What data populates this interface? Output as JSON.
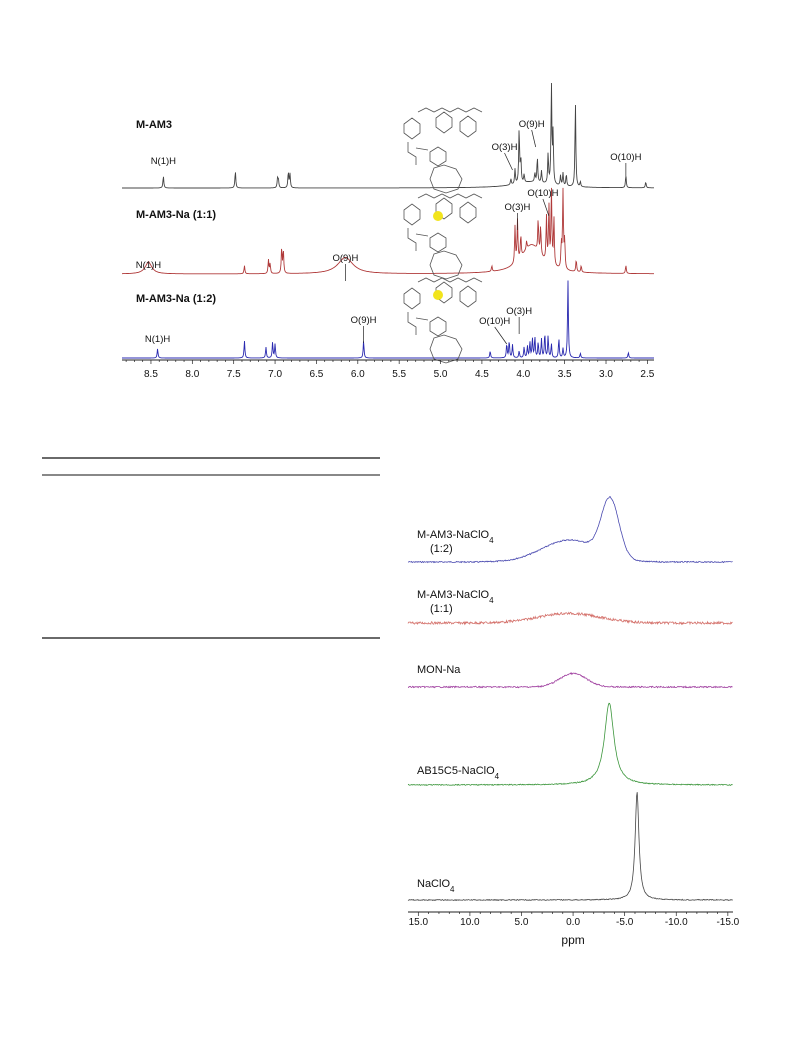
{
  "chart_data": [
    {
      "type": "line",
      "xlim": [
        8.85,
        2.42
      ],
      "x_ticks": [
        "8.5",
        "8.0",
        "7.5",
        "7.0",
        "6.5",
        "6.0",
        "5.5",
        "5.0",
        "4.5",
        "4.0",
        "3.5",
        "3.0",
        "2.5"
      ],
      "x_tick_values": [
        8.5,
        8.0,
        7.5,
        7.0,
        6.5,
        6.0,
        5.5,
        5.0,
        4.5,
        4.0,
        3.5,
        3.0,
        2.5
      ],
      "series": [
        {
          "name": "M-AM3",
          "color": "#444444",
          "peaks": [
            [
              8.35,
              0.12
            ],
            [
              7.48,
              0.17
            ],
            [
              6.97,
              0.09
            ],
            [
              6.96,
              0.08
            ],
            [
              6.84,
              0.16
            ],
            [
              6.82,
              0.14
            ],
            [
              4.15,
              0.06
            ],
            [
              4.1,
              0.15
            ],
            [
              4.05,
              0.55
            ],
            [
              4.03,
              0.25
            ],
            [
              3.99,
              0.08
            ],
            [
              3.86,
              0.09
            ],
            [
              3.83,
              0.25
            ],
            [
              3.78,
              0.12
            ],
            [
              3.7,
              0.3
            ],
            [
              3.66,
              1.0
            ],
            [
              3.64,
              0.5
            ],
            [
              3.55,
              0.1
            ],
            [
              3.52,
              0.13
            ],
            [
              3.48,
              0.12
            ],
            [
              3.37,
              0.85
            ],
            [
              3.31,
              0.05
            ],
            [
              2.76,
              0.12
            ],
            [
              2.52,
              0.06
            ]
          ],
          "broad": [
            [
              3.9,
              0.06,
              0.25
            ]
          ],
          "labels": [
            {
              "text": "N(1)H",
              "x": 8.35
            },
            {
              "text": "O(3)H",
              "x": 4.13
            },
            {
              "text": "O(9)H",
              "x": 3.85
            },
            {
              "text": "O(10)H",
              "x": 2.76
            }
          ]
        },
        {
          "name": "M-AM3-Na (1:1)",
          "color": "#b03a3a",
          "peaks": [
            [
              8.53,
              0.01
            ],
            [
              7.37,
              0.1
            ],
            [
              7.08,
              0.17
            ],
            [
              7.06,
              0.12
            ],
            [
              6.92,
              0.32
            ],
            [
              6.9,
              0.28
            ],
            [
              4.38,
              0.07
            ],
            [
              4.1,
              0.45
            ],
            [
              4.07,
              0.5
            ],
            [
              4.03,
              0.28
            ],
            [
              3.96,
              0.1
            ],
            [
              3.82,
              0.4
            ],
            [
              3.79,
              0.35
            ],
            [
              3.72,
              0.55
            ],
            [
              3.69,
              0.7
            ],
            [
              3.66,
              0.95
            ],
            [
              3.63,
              0.6
            ],
            [
              3.54,
              0.3
            ],
            [
              3.52,
              1.0
            ],
            [
              3.5,
              0.35
            ],
            [
              3.36,
              0.15
            ],
            [
              3.3,
              0.08
            ],
            [
              2.76,
              0.1
            ]
          ],
          "broad": [
            [
              8.53,
              0.14,
              0.05
            ],
            [
              6.15,
              0.2,
              0.11
            ],
            [
              3.9,
              0.35,
              0.15
            ]
          ],
          "labels": [
            {
              "text": "N(1)H",
              "x": 8.53
            },
            {
              "text": "O(9)H",
              "x": 6.15
            },
            {
              "text": "O(3)H",
              "x": 4.07
            },
            {
              "text": "O(10)H",
              "x": 3.69
            }
          ]
        },
        {
          "name": "M-AM3-Na (1:2)",
          "color": "#2a2ab0",
          "peaks": [
            [
              8.42,
              0.12
            ],
            [
              7.37,
              0.22
            ],
            [
              7.11,
              0.14
            ],
            [
              7.03,
              0.2
            ],
            [
              7.0,
              0.18
            ],
            [
              5.93,
              0.22
            ],
            [
              4.4,
              0.09
            ],
            [
              4.2,
              0.18
            ],
            [
              4.17,
              0.22
            ],
            [
              4.13,
              0.17
            ],
            [
              4.05,
              0.09
            ],
            [
              3.99,
              0.14
            ],
            [
              3.95,
              0.15
            ],
            [
              3.92,
              0.2
            ],
            [
              3.89,
              0.25
            ],
            [
              3.86,
              0.27
            ],
            [
              3.82,
              0.2
            ],
            [
              3.78,
              0.24
            ],
            [
              3.74,
              0.32
            ],
            [
              3.7,
              0.28
            ],
            [
              3.66,
              0.18
            ],
            [
              3.57,
              0.25
            ],
            [
              3.52,
              0.12
            ],
            [
              3.46,
              1.0
            ],
            [
              3.31,
              0.06
            ],
            [
              2.73,
              0.07
            ]
          ],
          "broad": [],
          "labels": [
            {
              "text": "N(1)H",
              "x": 8.42
            },
            {
              "text": "O(9)H",
              "x": 5.93
            },
            {
              "text": "O(10)H",
              "x": 4.2
            },
            {
              "text": "O(3)H",
              "x": 4.05
            }
          ]
        }
      ]
    },
    {
      "type": "line",
      "xlabel": "ppm",
      "xlim": [
        16.0,
        -15.5
      ],
      "x_ticks": [
        "15.0",
        "10.0",
        "5.0",
        "0.0",
        "-5.0",
        "-10.0",
        "-15.0"
      ],
      "x_tick_values": [
        15,
        10,
        5,
        0,
        -5,
        -10,
        -15
      ],
      "series": [
        {
          "name": "M-AM3-NaClO",
          "name_sub": "4",
          "name_line2": "(1:2)",
          "color": "#4a4ab0",
          "components": [
            [
              -3.6,
              0.62,
              0.85
            ],
            [
              0.3,
              0.24,
              2.7
            ]
          ]
        },
        {
          "name": "M-AM3-NaClO",
          "name_sub": "4",
          "name_line2": "(1:1)",
          "color": "#d4706a",
          "components": [
            [
              0.4,
              0.24,
              3.0
            ]
          ]
        },
        {
          "name": "MON-Na",
          "name_sub": "",
          "name_line2": "",
          "color": "#a040a0",
          "components": [
            [
              0.0,
              0.45,
              1.3
            ]
          ]
        },
        {
          "name": "AB15C5-NaClO",
          "name_sub": "4",
          "name_line2": "",
          "color": "#3c963c",
          "components": [
            [
              -3.5,
              1.0,
              0.55
            ]
          ]
        },
        {
          "name": "NaClO",
          "name_sub": "4",
          "name_line2": "",
          "color": "#444444",
          "components": [
            [
              -6.2,
              1.0,
              0.22
            ]
          ]
        }
      ]
    }
  ]
}
